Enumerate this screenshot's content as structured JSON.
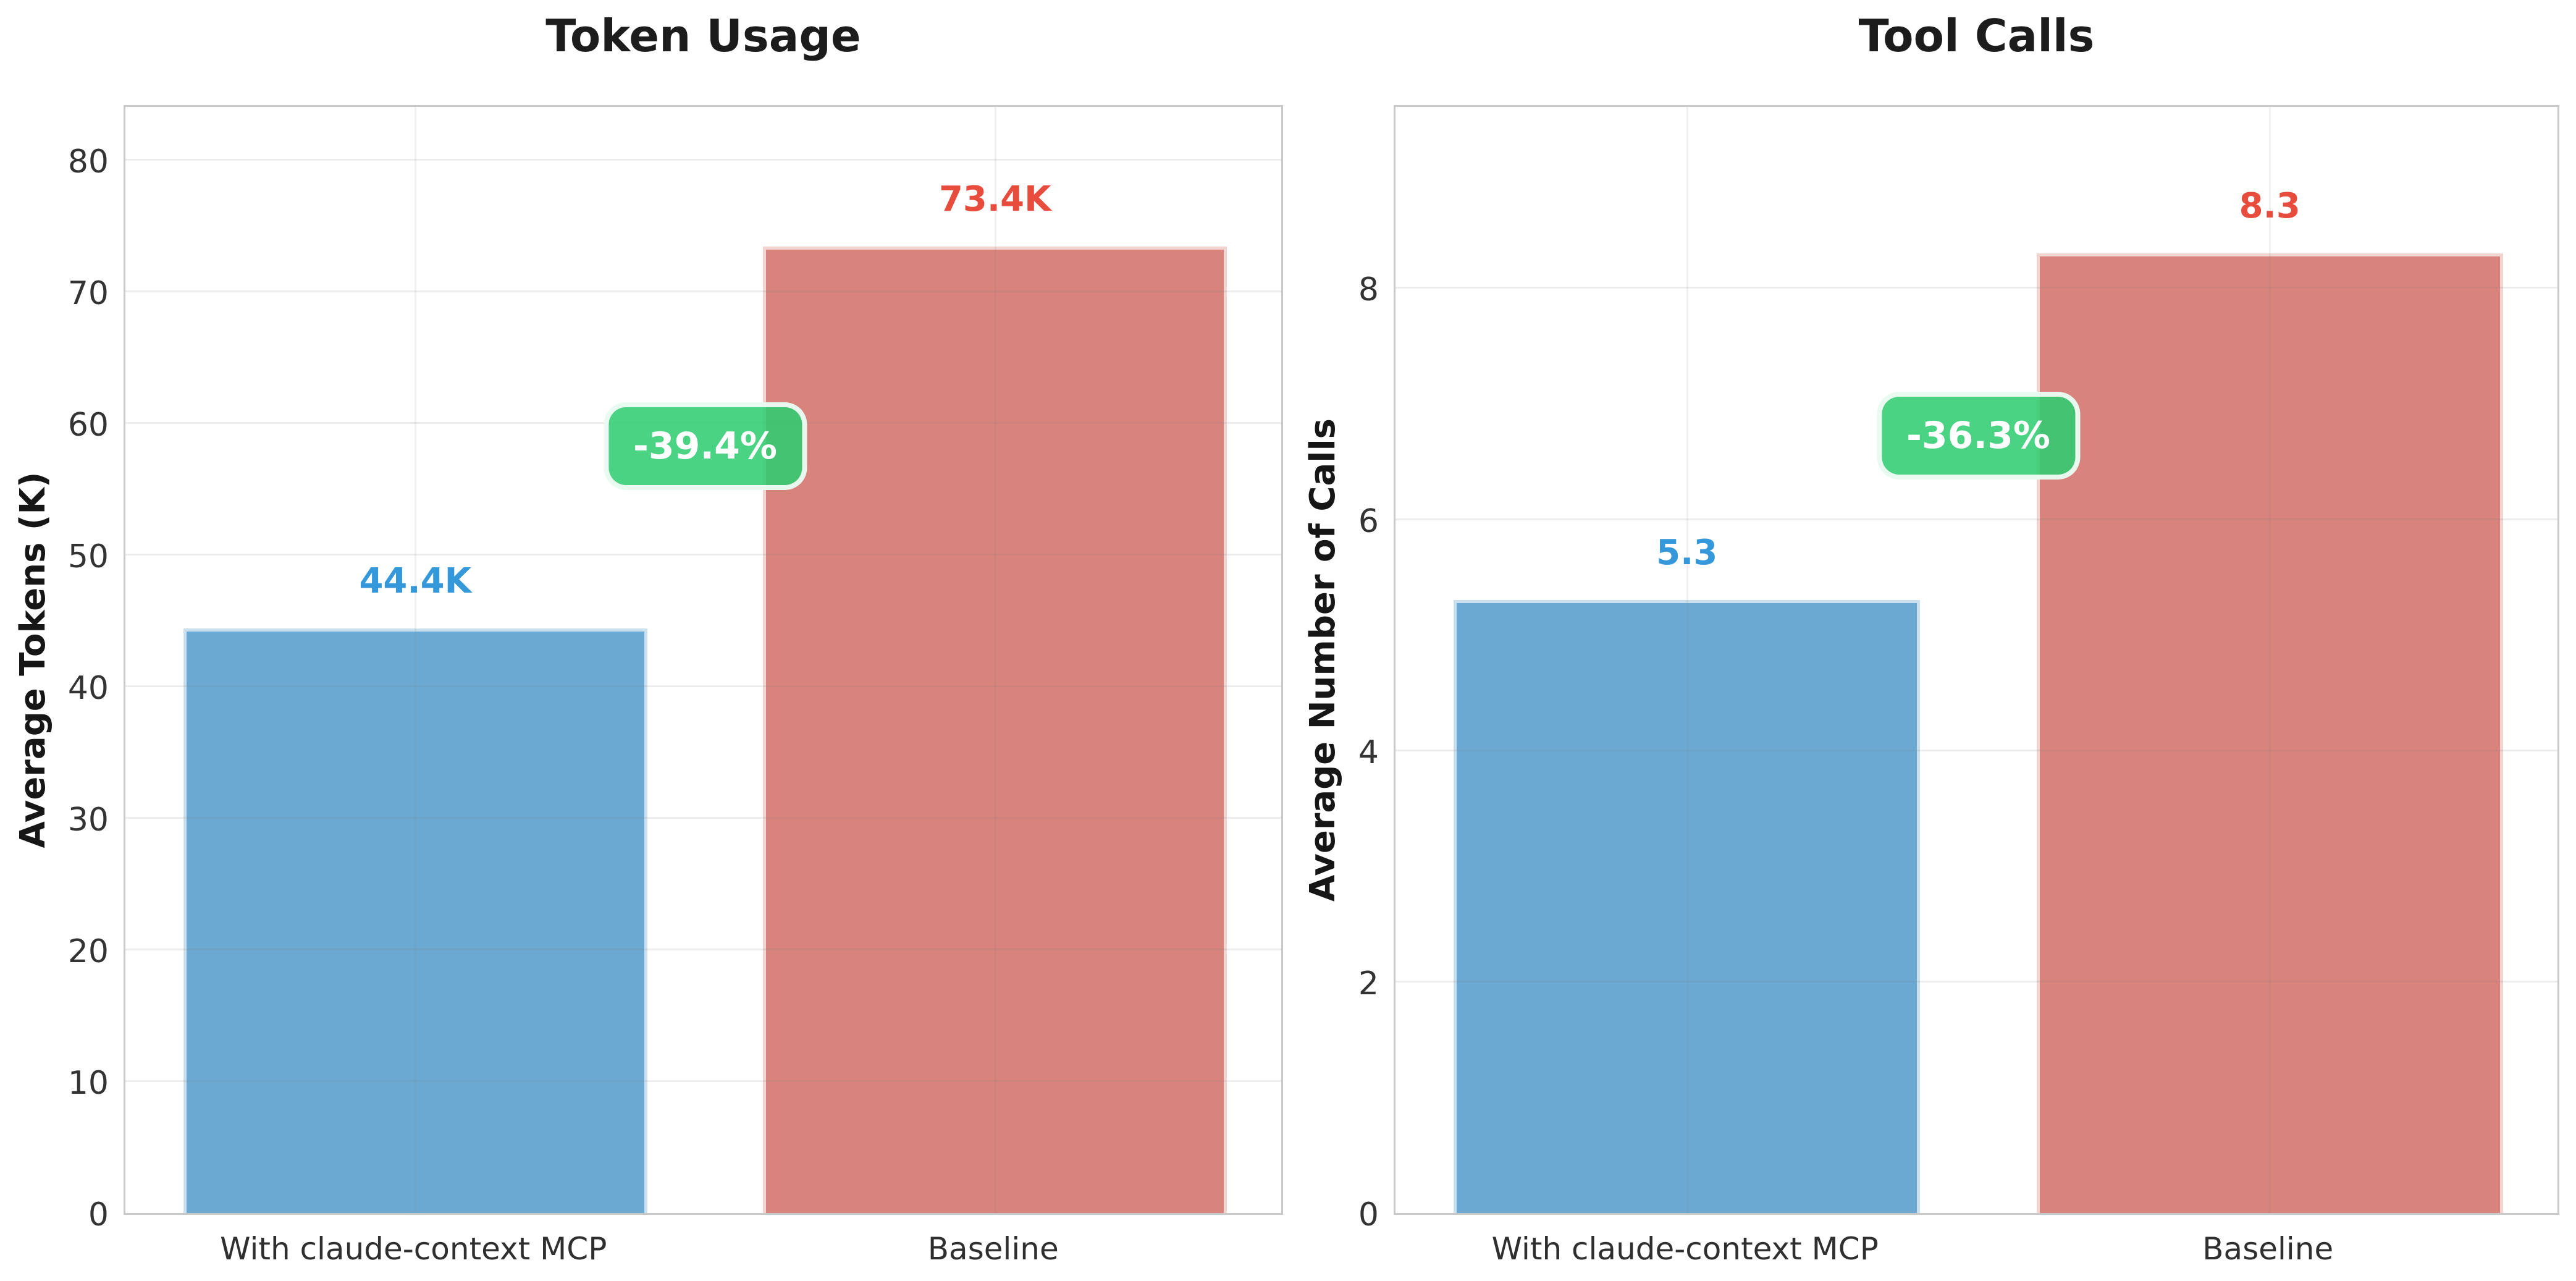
{
  "figure": {
    "background": "#ffffff"
  },
  "chart_data": [
    {
      "type": "bar",
      "title": "Token Usage",
      "ylabel": "Average Tokens (K)",
      "xlabel": "",
      "categories": [
        "With claude-context MCP",
        "Baseline"
      ],
      "values": [
        44.4,
        73.4
      ],
      "bar_value_labels": [
        "44.4K",
        "73.4K"
      ],
      "bar_colors": [
        "#6BA9D2",
        "#D9837D"
      ],
      "bar_label_colors": [
        "#3498DB",
        "#E74C3C"
      ],
      "ytick_values": [
        0,
        10,
        20,
        30,
        40,
        50,
        60,
        70,
        80
      ],
      "ylim": [
        0,
        84.3
      ],
      "grid": true,
      "legend": "none",
      "annotation": {
        "text": "-39.4%",
        "value_y": 58.9,
        "bg_color": "#2ECC71",
        "text_color": "#FFFFFF"
      }
    },
    {
      "type": "bar",
      "title": "Tool Calls",
      "ylabel": "Average Number of Calls",
      "xlabel": "",
      "categories": [
        "With claude-context MCP",
        "Baseline"
      ],
      "values": [
        5.3,
        8.3
      ],
      "bar_value_labels": [
        "5.3",
        "8.3"
      ],
      "bar_colors": [
        "#6BA9D2",
        "#D9837D"
      ],
      "bar_label_colors": [
        "#3498DB",
        "#E74C3C"
      ],
      "ytick_values": [
        0,
        2,
        4,
        6,
        8
      ],
      "ylim": [
        0,
        9.6
      ],
      "grid": true,
      "legend": "none",
      "annotation": {
        "text": "-36.3%",
        "value_y": 6.8,
        "bg_color": "#2ECC71",
        "text_color": "#FFFFFF"
      }
    }
  ]
}
